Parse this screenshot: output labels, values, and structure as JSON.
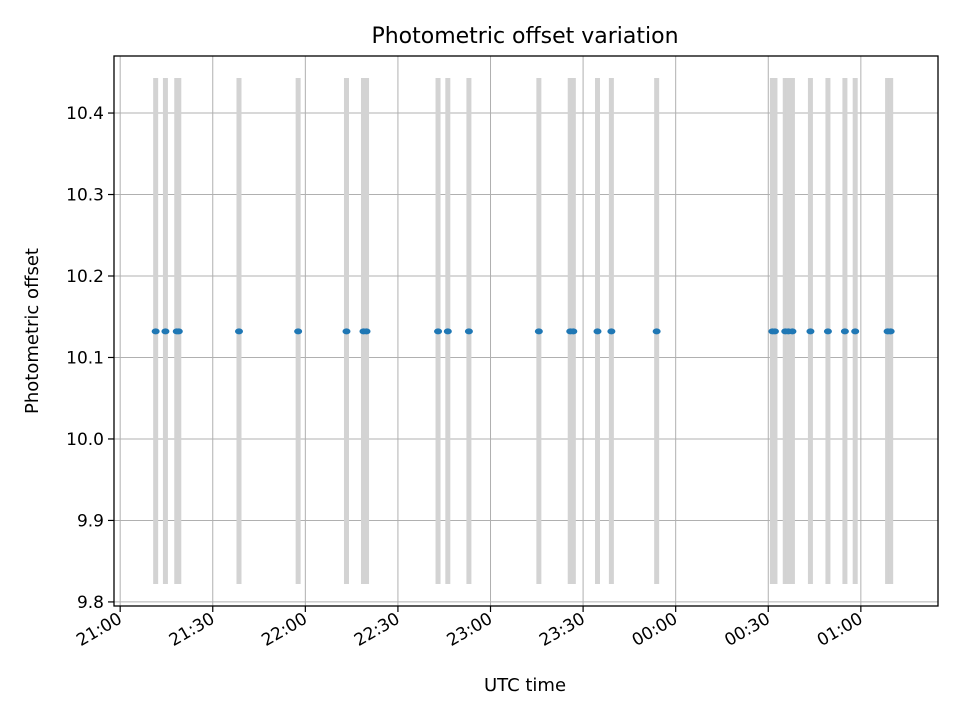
{
  "chart_data": {
    "type": "scatter",
    "title": "Photometric offset variation",
    "xlabel": "UTC time",
    "ylabel": "Photometric offset",
    "x_axis_kind": "time",
    "x_range": [
      "20:58",
      "01:25"
    ],
    "ylim": [
      9.795,
      10.47
    ],
    "xticks": [
      "21:00",
      "21:30",
      "22:00",
      "22:30",
      "23:00",
      "23:30",
      "00:00",
      "00:30",
      "01:00"
    ],
    "yticks": [
      "9.8",
      "9.9",
      "10.0",
      "10.1",
      "10.2",
      "10.3",
      "10.4"
    ],
    "grid": true,
    "colors": {
      "points": "#1f77b4",
      "bands": "#d3d3d3",
      "grid": "#b0b0b0"
    },
    "band_ylim": [
      9.822,
      10.443
    ],
    "observation_bands": [
      "21:11:30",
      "21:14:40",
      "21:18:20",
      "21:19:00",
      "21:38:30",
      "21:57:40",
      "22:13:20",
      "22:18:50",
      "22:19:50",
      "22:43:00",
      "22:46:10",
      "22:53:00",
      "23:15:40",
      "23:25:50",
      "23:26:50",
      "23:34:40",
      "23:39:10",
      "23:53:50",
      "00:31:20",
      "00:32:10",
      "00:35:30",
      "00:36:30",
      "00:37:50",
      "00:43:40",
      "00:49:20",
      "00:54:50",
      "00:58:10",
      "01:08:40",
      "01:09:40"
    ],
    "series": [
      {
        "x": [
          "21:11:30",
          "21:14:40",
          "21:18:20",
          "21:19:00",
          "21:38:30",
          "21:57:40",
          "22:13:20",
          "22:18:50",
          "22:19:50",
          "22:43:00",
          "22:46:10",
          "22:53:00",
          "23:15:40",
          "23:25:50",
          "23:26:50",
          "23:34:40",
          "23:39:10",
          "23:53:50",
          "00:31:20",
          "00:32:10",
          "00:35:30",
          "00:36:30",
          "00:37:50",
          "00:43:40",
          "00:49:20",
          "00:54:50",
          "00:58:10",
          "01:08:40",
          "01:09:40"
        ],
        "y": [
          10.132,
          10.132,
          10.132,
          10.132,
          10.132,
          10.132,
          10.132,
          10.132,
          10.132,
          10.132,
          10.132,
          10.132,
          10.132,
          10.132,
          10.132,
          10.132,
          10.132,
          10.132,
          10.132,
          10.132,
          10.132,
          10.132,
          10.132,
          10.132,
          10.132,
          10.132,
          10.132,
          10.132,
          10.132
        ]
      }
    ]
  }
}
